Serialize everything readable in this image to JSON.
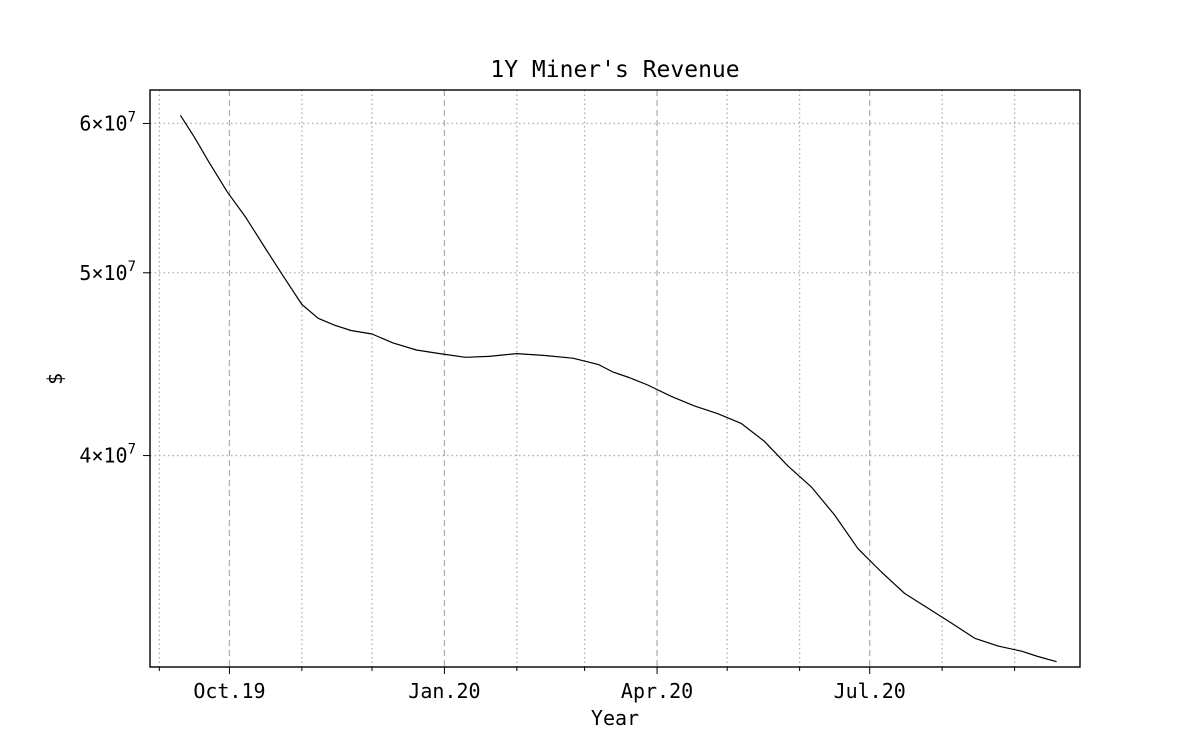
{
  "chart_data": {
    "type": "line",
    "title": "1Y Miner's Revenue",
    "xlabel": "Year",
    "ylabel": "$",
    "y_scale": "log",
    "xlim": [
      "2019-08-28",
      "2020-09-29"
    ],
    "ylim": [
      30900000,
      62500000
    ],
    "x_major_ticks": [
      {
        "date": "2019-10-01",
        "label": "Oct.19"
      },
      {
        "date": "2020-01-01",
        "label": "Jan.20"
      },
      {
        "date": "2020-04-01",
        "label": "Apr.20"
      },
      {
        "date": "2020-07-01",
        "label": "Jul.20"
      }
    ],
    "x_minor_ticks": [
      "2019-09-01",
      "2019-11-01",
      "2019-12-01",
      "2020-02-01",
      "2020-03-01",
      "2020-05-01",
      "2020-06-01",
      "2020-08-01",
      "2020-09-01"
    ],
    "y_ticks": [
      {
        "value": 60000000,
        "mantissa": "6",
        "exponent": "7"
      },
      {
        "value": 50000000,
        "mantissa": "5",
        "exponent": "7"
      },
      {
        "value": 40000000,
        "mantissa": "4",
        "exponent": "7"
      }
    ],
    "grid": true,
    "series": [
      {
        "color": "#000000",
        "x": [
          "2019-09-10",
          "2019-09-16",
          "2019-09-22",
          "2019-09-30",
          "2019-10-08",
          "2019-10-16",
          "2019-10-24",
          "2019-11-01",
          "2019-11-08",
          "2019-11-15",
          "2019-11-22",
          "2019-12-01",
          "2019-12-10",
          "2019-12-20",
          "2019-12-30",
          "2020-01-10",
          "2020-01-20",
          "2020-02-01",
          "2020-02-13",
          "2020-02-25",
          "2020-03-07",
          "2020-03-13",
          "2020-03-20",
          "2020-03-28",
          "2020-04-07",
          "2020-04-17",
          "2020-04-27",
          "2020-05-07",
          "2020-05-17",
          "2020-05-27",
          "2020-06-06",
          "2020-06-16",
          "2020-06-26",
          "2020-07-06",
          "2020-07-16",
          "2020-07-26",
          "2020-08-05",
          "2020-08-15",
          "2020-08-25",
          "2020-09-04",
          "2020-09-11",
          "2020-09-19"
        ],
        "y": [
          60600000,
          59000000,
          57300000,
          55200000,
          53500000,
          51600000,
          49800000,
          48100000,
          47300000,
          46900000,
          46600000,
          46400000,
          45900000,
          45500000,
          45300000,
          45100000,
          45150000,
          45300000,
          45200000,
          45050000,
          44700000,
          44300000,
          44000000,
          43600000,
          43000000,
          42500000,
          42100000,
          41600000,
          40700000,
          39500000,
          38500000,
          37200000,
          35700000,
          34700000,
          33800000,
          33200000,
          32600000,
          32000000,
          31700000,
          31500000,
          31300000,
          31100000
        ]
      }
    ]
  }
}
